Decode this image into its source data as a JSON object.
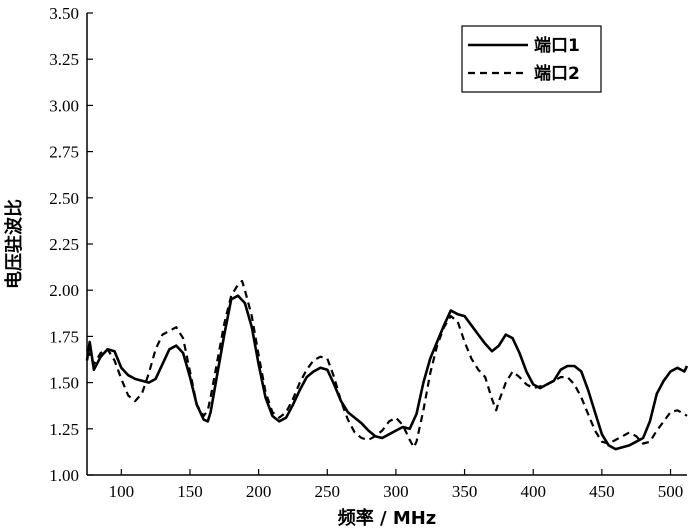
{
  "chart_data": {
    "type": "line",
    "title": "",
    "xlabel": "频率 / MHz",
    "ylabel": "电压驻波比",
    "xlim": [
      75,
      512
    ],
    "ylim": [
      1.0,
      3.5
    ],
    "xticks": [
      100,
      150,
      200,
      250,
      300,
      350,
      400,
      450,
      500
    ],
    "yticks": [
      1.0,
      1.25,
      1.5,
      1.75,
      2.0,
      2.25,
      2.5,
      2.75,
      3.0,
      3.25,
      3.5
    ],
    "ytick_labels": [
      "1.00",
      "1.25",
      "1.50",
      "1.75",
      "2.00",
      "2.25",
      "2.50",
      "2.75",
      "3.00",
      "3.25",
      "3.50"
    ],
    "grid": false,
    "legend_position": "top-right",
    "series": [
      {
        "name": "端口1",
        "style": "solid",
        "color": "#000000",
        "x": [
          75,
          77,
          80,
          85,
          90,
          95,
          100,
          105,
          110,
          115,
          120,
          125,
          130,
          135,
          140,
          145,
          150,
          155,
          160,
          163,
          165,
          170,
          175,
          180,
          185,
          190,
          195,
          200,
          205,
          210,
          215,
          220,
          225,
          230,
          235,
          240,
          245,
          250,
          255,
          260,
          265,
          270,
          275,
          280,
          285,
          290,
          295,
          300,
          305,
          310,
          315,
          320,
          325,
          330,
          335,
          340,
          345,
          350,
          355,
          360,
          365,
          370,
          375,
          380,
          385,
          390,
          395,
          400,
          405,
          410,
          415,
          420,
          425,
          430,
          435,
          440,
          445,
          450,
          455,
          460,
          465,
          470,
          475,
          480,
          485,
          490,
          495,
          500,
          505,
          510,
          512
        ],
        "y": [
          1.62,
          1.72,
          1.57,
          1.64,
          1.68,
          1.67,
          1.58,
          1.54,
          1.52,
          1.51,
          1.5,
          1.52,
          1.6,
          1.68,
          1.7,
          1.66,
          1.53,
          1.38,
          1.3,
          1.29,
          1.34,
          1.55,
          1.76,
          1.95,
          1.97,
          1.93,
          1.8,
          1.6,
          1.42,
          1.32,
          1.29,
          1.31,
          1.38,
          1.46,
          1.53,
          1.56,
          1.58,
          1.57,
          1.49,
          1.4,
          1.34,
          1.31,
          1.28,
          1.24,
          1.21,
          1.2,
          1.22,
          1.24,
          1.26,
          1.25,
          1.33,
          1.5,
          1.63,
          1.72,
          1.81,
          1.89,
          1.87,
          1.86,
          1.81,
          1.76,
          1.71,
          1.67,
          1.7,
          1.76,
          1.74,
          1.66,
          1.56,
          1.49,
          1.47,
          1.49,
          1.51,
          1.57,
          1.59,
          1.59,
          1.56,
          1.46,
          1.34,
          1.22,
          1.16,
          1.14,
          1.15,
          1.16,
          1.18,
          1.2,
          1.29,
          1.44,
          1.51,
          1.56,
          1.58,
          1.56,
          1.59
        ]
      },
      {
        "name": "端口2",
        "style": "dashed",
        "color": "#000000",
        "x": [
          75,
          77,
          80,
          85,
          90,
          95,
          100,
          105,
          110,
          115,
          120,
          125,
          130,
          135,
          140,
          145,
          150,
          155,
          160,
          163,
          165,
          170,
          175,
          180,
          185,
          188,
          190,
          195,
          200,
          205,
          210,
          215,
          220,
          225,
          230,
          235,
          240,
          245,
          250,
          255,
          260,
          265,
          270,
          275,
          280,
          285,
          290,
          295,
          300,
          305,
          310,
          313,
          315,
          320,
          325,
          330,
          335,
          340,
          345,
          350,
          355,
          360,
          365,
          370,
          373,
          375,
          380,
          385,
          390,
          395,
          400,
          405,
          410,
          415,
          420,
          425,
          430,
          435,
          440,
          445,
          450,
          455,
          460,
          465,
          470,
          475,
          480,
          485,
          490,
          495,
          500,
          505,
          510,
          512
        ],
        "y": [
          1.68,
          1.65,
          1.6,
          1.66,
          1.68,
          1.62,
          1.52,
          1.43,
          1.4,
          1.44,
          1.55,
          1.68,
          1.76,
          1.78,
          1.8,
          1.74,
          1.56,
          1.38,
          1.32,
          1.35,
          1.42,
          1.62,
          1.82,
          1.97,
          2.03,
          2.05,
          2.0,
          1.86,
          1.65,
          1.45,
          1.34,
          1.31,
          1.34,
          1.41,
          1.5,
          1.57,
          1.62,
          1.64,
          1.63,
          1.53,
          1.4,
          1.3,
          1.23,
          1.2,
          1.19,
          1.21,
          1.24,
          1.29,
          1.31,
          1.27,
          1.19,
          1.15,
          1.18,
          1.35,
          1.55,
          1.7,
          1.8,
          1.86,
          1.83,
          1.72,
          1.63,
          1.57,
          1.53,
          1.41,
          1.35,
          1.4,
          1.5,
          1.56,
          1.53,
          1.49,
          1.47,
          1.48,
          1.49,
          1.51,
          1.53,
          1.53,
          1.49,
          1.42,
          1.33,
          1.24,
          1.18,
          1.17,
          1.19,
          1.21,
          1.23,
          1.21,
          1.17,
          1.18,
          1.24,
          1.29,
          1.34,
          1.35,
          1.33,
          1.32
        ]
      }
    ]
  }
}
